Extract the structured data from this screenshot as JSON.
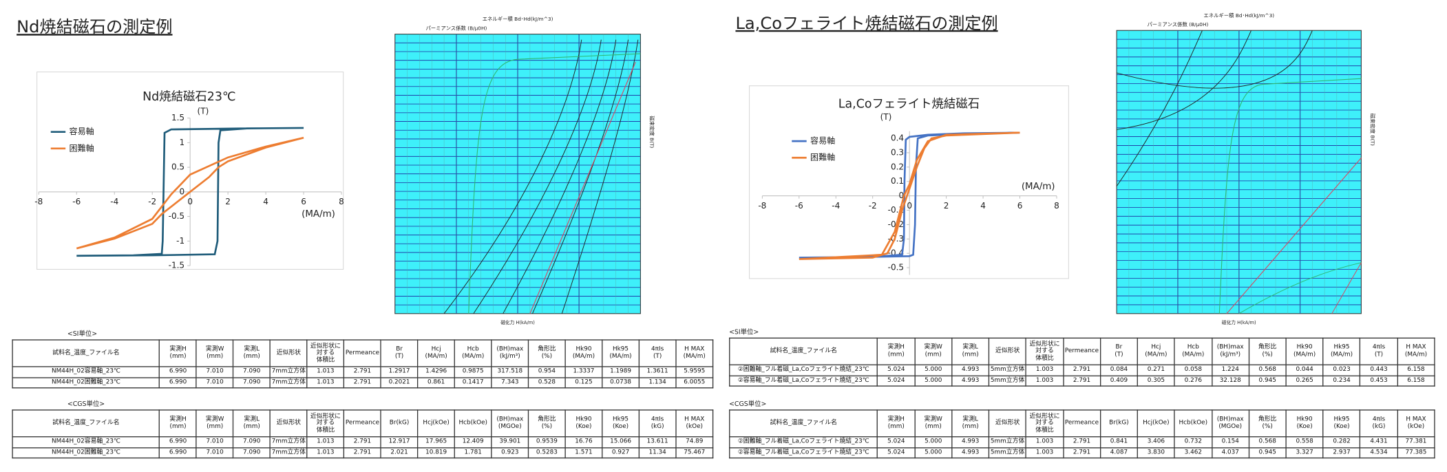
{
  "chart_data": [
    {
      "type": "line",
      "title": "Nd焼結磁石23℃",
      "x_label": "(MA/m)",
      "y_label": "(T)",
      "xlim": [
        -8,
        8
      ],
      "xticks": [
        -8,
        -6,
        -4,
        -2,
        0,
        2,
        4,
        6,
        8
      ],
      "ylim": [
        -1.5,
        1.5
      ],
      "yticks": [
        -1.5,
        -1,
        -0.5,
        0,
        0.5,
        1,
        1.5
      ],
      "grid": false,
      "legend": "top-left",
      "series": [
        {
          "name": "容易軸",
          "color": "#1f5c7a",
          "x": [
            -6,
            -2,
            1.3,
            1.45,
            1.5,
            1.6,
            3,
            6,
            3,
            -1,
            -1.35,
            -1.45,
            -1.5,
            -3,
            -6
          ],
          "values": [
            -1.3,
            -1.29,
            -1.27,
            -1.0,
            1.0,
            1.25,
            1.29,
            1.3,
            1.29,
            1.27,
            1.2,
            -1.0,
            -1.26,
            -1.29,
            -1.3
          ]
        },
        {
          "name": "困難軸",
          "color": "#ed7d31",
          "x": [
            -6,
            -4,
            -2,
            -1.5,
            0,
            1,
            1.5,
            2,
            4,
            6,
            4,
            2,
            0,
            -1,
            -2,
            -4,
            -6
          ],
          "values": [
            -1.15,
            -0.95,
            -0.65,
            -0.45,
            0,
            0.3,
            0.5,
            0.62,
            0.9,
            1.1,
            0.92,
            0.7,
            0.35,
            -0.05,
            -0.55,
            -0.93,
            -1.15
          ]
        }
      ]
    },
    {
      "type": "line",
      "title": "La,Coフェライト焼結磁石",
      "x_label": "(MA/m)",
      "y_label": "(T)",
      "xlim": [
        -8,
        8
      ],
      "xticks": [
        -8,
        -6,
        -4,
        -2,
        0,
        2,
        4,
        6,
        8
      ],
      "ylim": [
        -0.55,
        0.45
      ],
      "yticks": [
        -0.5,
        -0.4,
        -0.3,
        -0.2,
        -0.1,
        0,
        0.1,
        0.2,
        0.3,
        0.4
      ],
      "grid": false,
      "legend": "top-left",
      "series": [
        {
          "name": "容易軸",
          "color": "#4472c4",
          "x": [
            -6,
            -2,
            0,
            0.2,
            0.3,
            0.35,
            0.45,
            1,
            3,
            6,
            3,
            1,
            0,
            -0.2,
            -0.27,
            -0.3,
            -0.4,
            -2,
            -6
          ],
          "values": [
            -0.43,
            -0.425,
            -0.42,
            -0.41,
            -0.2,
            0.2,
            0.4,
            0.42,
            0.43,
            0.44,
            0.435,
            0.425,
            0.41,
            0.39,
            0.1,
            -0.3,
            -0.41,
            -0.425,
            -0.43
          ]
        },
        {
          "name": "困難軸",
          "color": "#ed7d31",
          "x": [
            -6,
            -2,
            -1.2,
            -0.8,
            -0.4,
            0,
            0.4,
            0.8,
            1.2,
            2,
            6,
            2,
            1,
            0.4,
            0,
            -0.3,
            -0.8,
            -1.5,
            -6
          ],
          "values": [
            -0.44,
            -0.43,
            -0.4,
            -0.3,
            -0.1,
            0.05,
            0.2,
            0.33,
            0.4,
            0.42,
            0.44,
            0.425,
            0.38,
            0.25,
            0.08,
            0,
            -0.25,
            -0.41,
            -0.44
          ]
        }
      ]
    }
  ],
  "panels": [
    {
      "title": "Nd焼結磁石の測定例",
      "bh_plot": {
        "energy_label": "エネルギー積 Bd･Hd(kJ/m^3)",
        "permeance_label": "パーミアンス係数 (B/μ0H)",
        "x_label": "磁化力 H(kA/m)",
        "y_label": "磁束密度 B(T)"
      },
      "tables": [
        {
          "caption": "<SI単位>",
          "header": [
            "試料名_温度_ファイル名",
            "実測H\n(mm)",
            "実測W\n(mm)",
            "実測L\n(mm)",
            "近似形状",
            "近似形状に\n対する\n体積比",
            "Permeance",
            "Br\n(T)",
            "Hcj\n(MA/m)",
            "Hcb\n(MA/m)",
            "(BH)max\n(kJ/m³)",
            "角形比\n(%)",
            "Hk90\n(MA/m)",
            "Hk95\n(MA/m)",
            "4πIs\n(T)",
            "H MAX\n(MA/m)"
          ],
          "rows": [
            [
              "NM44H_02容易軸_23℃",
              "6.990",
              "7.010",
              "7.090",
              "7mm立方体",
              "1.013",
              "2.791",
              "1.2917",
              "1.4296",
              "0.9875",
              "317.518",
              "0.954",
              "1.3337",
              "1.1989",
              "1.3611",
              "5.9595"
            ],
            [
              "NM44H_02困難軸_23℃",
              "6.990",
              "7.010",
              "7.090",
              "7mm立方体",
              "1.013",
              "2.791",
              "0.2021",
              "0.861",
              "0.1417",
              "7.343",
              "0.528",
              "0.125",
              "0.0738",
              "1.134",
              "6.0055"
            ]
          ]
        },
        {
          "caption": "<CGS単位>",
          "header": [
            "試料名_温度_ファイル名",
            "実測H\n(mm)",
            "実測W\n(mm)",
            "実測L\n(mm)",
            "近似形状",
            "近似形状に\n対する\n体積比",
            "Permeance",
            "Br(kG)",
            "Hcj(kOe)",
            "Hcb(kOe)",
            "(BH)max\n(MGOe)",
            "角形比\n(%)",
            "Hk90\n(Koe)",
            "Hk95\n(Koe)",
            "4πIs\n(kG)",
            "H MAX\n(kOe)"
          ],
          "rows": [
            [
              "NM44H_02容易軸_23℃",
              "6.990",
              "7.010",
              "7.090",
              "7mm立方体",
              "1.013",
              "2.791",
              "12.917",
              "17.965",
              "12.409",
              "39.901",
              "0.9539",
              "16.76",
              "15.066",
              "13.611",
              "74.89"
            ],
            [
              "NM44H_02困難軸_23℃",
              "6.990",
              "7.010",
              "7.090",
              "7mm立方体",
              "1.013",
              "2.791",
              "2.021",
              "10.819",
              "1.781",
              "0.923",
              "0.5283",
              "1.571",
              "0.927",
              "11.34",
              "75.467"
            ]
          ]
        }
      ]
    },
    {
      "title": "La,Coフェライト焼結磁石の測定例",
      "bh_plot": {
        "energy_label": "エネルギー積 Bd･Hd(kJ/m^3)",
        "permeance_label": "パーミアンス係数 (B/μ0H)",
        "x_label": "磁化力 H(kA/m)",
        "y_label": "磁束密度 B(T)"
      },
      "tables": [
        {
          "caption": "<SI単位>",
          "header": [
            "試料名_温度_ファイル名",
            "実測H\n(mm)",
            "実測W\n(mm)",
            "実測L\n(mm)",
            "近似形状",
            "近似形状に\n対する\n体積比",
            "Permeance",
            "Br\n(T)",
            "Hcj\n(MA/m)",
            "Hcb\n(MA/m)",
            "(BH)max\n(kJ/m³)",
            "角形比\n(%)",
            "Hk90\n(MA/m)",
            "Hk95\n(MA/m)",
            "4πIs\n(T)",
            "H MAX\n(MA/m)"
          ],
          "rows": [
            [
              "②困難軸_フル着磁_La,Coフェライト焼結_23℃",
              "5.024",
              "5.000",
              "4.993",
              "5mm立方体",
              "1.003",
              "2.791",
              "0.084",
              "0.271",
              "0.058",
              "1.224",
              "0.568",
              "0.044",
              "0.023",
              "0.443",
              "6.158"
            ],
            [
              "②容易軸_フル着磁_La,Coフェライト焼結_23℃",
              "5.024",
              "5.000",
              "4.993",
              "5mm立方体",
              "1.003",
              "2.791",
              "0.409",
              "0.305",
              "0.276",
              "32.128",
              "0.945",
              "0.265",
              "0.234",
              "0.453",
              "6.158"
            ]
          ]
        },
        {
          "caption": "<CGS単位>",
          "header": [
            "試料名_温度_ファイル名",
            "実測H\n(mm)",
            "実測W\n(mm)",
            "実測L\n(mm)",
            "近似形状",
            "近似形状に\n対する\n体積比",
            "Permeance",
            "Br(kG)",
            "Hcj(kOe)",
            "Hcb(kOe)",
            "(BH)max\n(MGOe)",
            "角形比\n(%)",
            "Hk90\n(Koe)",
            "Hk95\n(Koe)",
            "4πIs\n(kG)",
            "H MAX\n(kOe)"
          ],
          "rows": [
            [
              "②困難軸_フル着磁_La,Coフェライト焼結_23℃",
              "5.024",
              "5.000",
              "4.993",
              "5mm立方体",
              "1.003",
              "2.791",
              "0.841",
              "3.406",
              "0.732",
              "0.154",
              "0.568",
              "0.558",
              "0.282",
              "4.431",
              "77.381"
            ],
            [
              "②容易軸_フル着磁_La,Coフェライト焼結_23℃",
              "5.024",
              "5.000",
              "4.993",
              "5mm立方体",
              "1.003",
              "2.791",
              "4.087",
              "3.830",
              "3.462",
              "4.037",
              "0.945",
              "3.327",
              "2.937",
              "4.534",
              "77.385"
            ]
          ]
        }
      ]
    }
  ]
}
